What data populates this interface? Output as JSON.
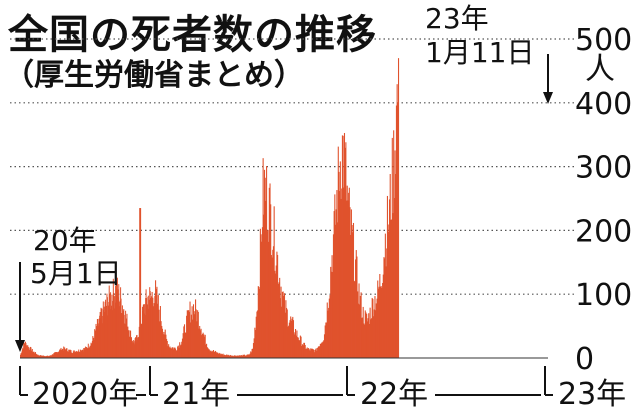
{
  "chart_data": {
    "type": "bar",
    "title": "全国の死者数の推移",
    "subtitle": "（厚生労働省まとめ）",
    "ylim": [
      0,
      500
    ],
    "yticks": [
      "0",
      "100",
      "200",
      "300",
      "400",
      "500"
    ],
    "yunit": "人",
    "xlabels": [
      "2020年",
      "21年",
      "22年",
      "23年"
    ],
    "grid": true,
    "bar_color": "#e0522d",
    "series": [
      {
        "values": [
          [
            0.0,
            5
          ],
          [
            0.03,
            25
          ],
          [
            0.06,
            18
          ],
          [
            0.1,
            10
          ],
          [
            0.14,
            4
          ],
          [
            0.22,
            3
          ],
          [
            0.27,
            8
          ],
          [
            0.3,
            12
          ],
          [
            0.33,
            15
          ],
          [
            0.36,
            13
          ],
          [
            0.4,
            10
          ],
          [
            0.45,
            12
          ],
          [
            0.5,
            15
          ],
          [
            0.55,
            25
          ],
          [
            0.58,
            45
          ],
          [
            0.62,
            65
          ],
          [
            0.66,
            85
          ],
          [
            0.7,
            100
          ],
          [
            0.74,
            110
          ],
          [
            0.77,
            95
          ],
          [
            0.8,
            75
          ],
          [
            0.83,
            50
          ],
          [
            0.85,
            35
          ],
          [
            0.87,
            25
          ],
          [
            0.89,
            28
          ],
          [
            0.91,
            42
          ],
          [
            0.93,
            60
          ],
          [
            0.95,
            80
          ],
          [
            0.97,
            92
          ],
          [
            0.99,
            100
          ],
          [
            1.0,
            95
          ],
          [
            1.02,
            110
          ],
          [
            1.04,
            85
          ],
          [
            1.06,
            55
          ],
          [
            1.08,
            30
          ],
          [
            1.1,
            18
          ],
          [
            1.13,
            15
          ],
          [
            1.16,
            30
          ],
          [
            1.18,
            55
          ],
          [
            1.2,
            75
          ],
          [
            1.22,
            82
          ],
          [
            1.24,
            70
          ],
          [
            1.26,
            48
          ],
          [
            1.28,
            28
          ],
          [
            1.3,
            14
          ],
          [
            1.34,
            8
          ],
          [
            1.38,
            5
          ],
          [
            1.42,
            4
          ],
          [
            1.46,
            4
          ],
          [
            1.5,
            5
          ],
          [
            1.52,
            15
          ],
          [
            1.54,
            80
          ],
          [
            1.56,
            180
          ],
          [
            1.57,
            260
          ],
          [
            1.58,
            275
          ],
          [
            1.6,
            250
          ],
          [
            1.62,
            210
          ],
          [
            1.64,
            170
          ],
          [
            1.66,
            120
          ],
          [
            1.68,
            85
          ],
          [
            1.7,
            65
          ],
          [
            1.72,
            55
          ],
          [
            1.74,
            40
          ],
          [
            1.76,
            30
          ],
          [
            1.78,
            20
          ],
          [
            1.8,
            14
          ],
          [
            1.84,
            12
          ],
          [
            1.88,
            35
          ],
          [
            1.9,
            90
          ],
          [
            1.92,
            160
          ],
          [
            1.94,
            230
          ],
          [
            1.96,
            310
          ],
          [
            1.97,
            340
          ],
          [
            1.98,
            330
          ],
          [
            1.99,
            300
          ],
          [
            2.0,
            250
          ],
          [
            2.02,
            200
          ],
          [
            2.04,
            150
          ],
          [
            2.06,
            100
          ],
          [
            2.08,
            70
          ],
          [
            2.1,
            60
          ],
          [
            2.12,
            78
          ],
          [
            2.13,
            90
          ],
          [
            2.15,
            100
          ],
          [
            2.17,
            130
          ],
          [
            2.19,
            190
          ],
          [
            2.21,
            230
          ],
          [
            2.23,
            300
          ],
          [
            2.24,
            350
          ],
          [
            2.25,
            410
          ],
          [
            2.26,
            456
          ]
        ]
      }
    ]
  },
  "annotations": {
    "start": {
      "line1": "20年",
      "line2": "5月1日"
    },
    "peak": {
      "line1": "23年",
      "line2": "1月11日"
    }
  }
}
